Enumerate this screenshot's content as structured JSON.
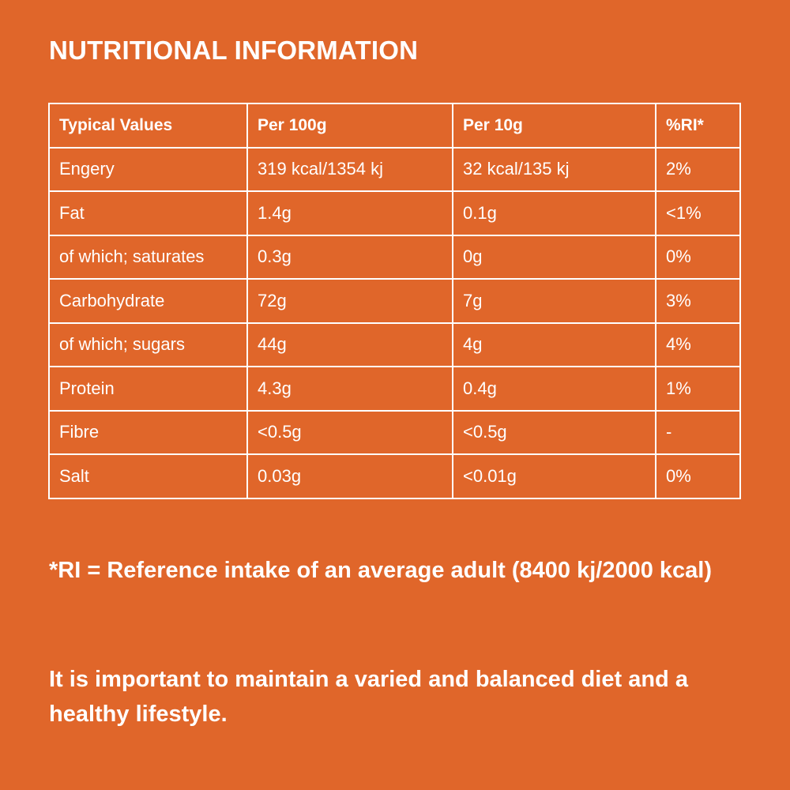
{
  "title": "NUTRITIONAL INFORMATION",
  "table": {
    "headers": [
      "Typical Values",
      "Per 100g",
      "Per 10g",
      "%RI*"
    ],
    "rows": [
      [
        "Engery",
        "319 kcal/1354 kj",
        "32 kcal/135 kj",
        "2%"
      ],
      [
        "Fat",
        "1.4g",
        "0.1g",
        "<1%"
      ],
      [
        "of which; saturates",
        "0.3g",
        "0g",
        "0%"
      ],
      [
        "Carbohydrate",
        "72g",
        "7g",
        "3%"
      ],
      [
        "of which; sugars",
        "44g",
        "4g",
        "4%"
      ],
      [
        "Protein",
        "4.3g",
        "0.4g",
        "1%"
      ],
      [
        "Fibre",
        "<0.5g",
        "<0.5g",
        "-"
      ],
      [
        "Salt",
        "0.03g",
        "<0.01g",
        "0%"
      ]
    ]
  },
  "footnote": "*RI = Reference intake of an average adult (8400 kj/2000 kcal)",
  "advice": "It is important to maintain a varied and balanced diet and a healthy lifestyle.",
  "colors": {
    "background": "#e0662a",
    "text": "#ffffff",
    "border": "#ffffff"
  }
}
